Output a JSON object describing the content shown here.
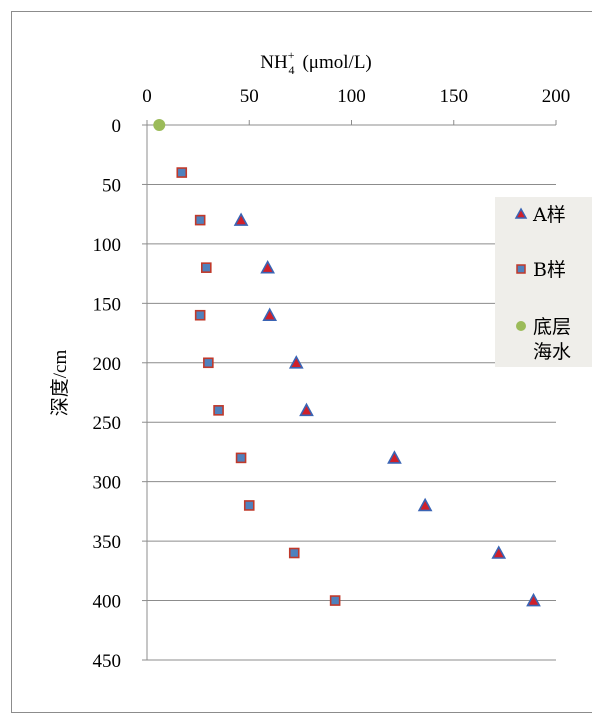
{
  "chart_data": {
    "type": "scatter",
    "x_axis": {
      "label": "NH4+ (μmol/L)",
      "label_main": "NH",
      "label_sub": "4",
      "label_sup": "+",
      "label_unit": "(μmol/L)",
      "position": "top",
      "range": [
        0,
        200
      ],
      "ticks": [
        0,
        50,
        100,
        150,
        200
      ]
    },
    "y_axis": {
      "label": "深度/cm",
      "reversed": true,
      "range": [
        0,
        450
      ],
      "ticks": [
        0,
        50,
        100,
        150,
        200,
        250,
        300,
        350,
        400,
        450
      ]
    },
    "grid": "horizontal",
    "legend_position": "right",
    "series": [
      {
        "name": "A样",
        "marker": "triangle",
        "color": "#d0202a",
        "edge_color": "#3a64b4",
        "points": [
          {
            "x": 46,
            "y": 80
          },
          {
            "x": 59,
            "y": 120
          },
          {
            "x": 60,
            "y": 160
          },
          {
            "x": 73,
            "y": 200
          },
          {
            "x": 78,
            "y": 240
          },
          {
            "x": 121,
            "y": 280
          },
          {
            "x": 136,
            "y": 320
          },
          {
            "x": 172,
            "y": 360
          },
          {
            "x": 189,
            "y": 400
          }
        ]
      },
      {
        "name": "B样",
        "marker": "square",
        "color": "#4f81bd",
        "edge_color": "#c0392b",
        "points": [
          {
            "x": 17,
            "y": 40
          },
          {
            "x": 26,
            "y": 80
          },
          {
            "x": 29,
            "y": 120
          },
          {
            "x": 26,
            "y": 160
          },
          {
            "x": 30,
            "y": 200
          },
          {
            "x": 35,
            "y": 240
          },
          {
            "x": 46,
            "y": 280
          },
          {
            "x": 50,
            "y": 320
          },
          {
            "x": 72,
            "y": 360
          },
          {
            "x": 92,
            "y": 400
          }
        ]
      },
      {
        "name": "底层海水",
        "name_lines": [
          "底层",
          "海水"
        ],
        "marker": "circle",
        "color": "#9bbb59",
        "edge_color": "#9bbb59",
        "points": [
          {
            "x": 6,
            "y": 0
          }
        ]
      }
    ],
    "legend_background": "#efeeea",
    "gridline_color": "#8c8c8c"
  }
}
